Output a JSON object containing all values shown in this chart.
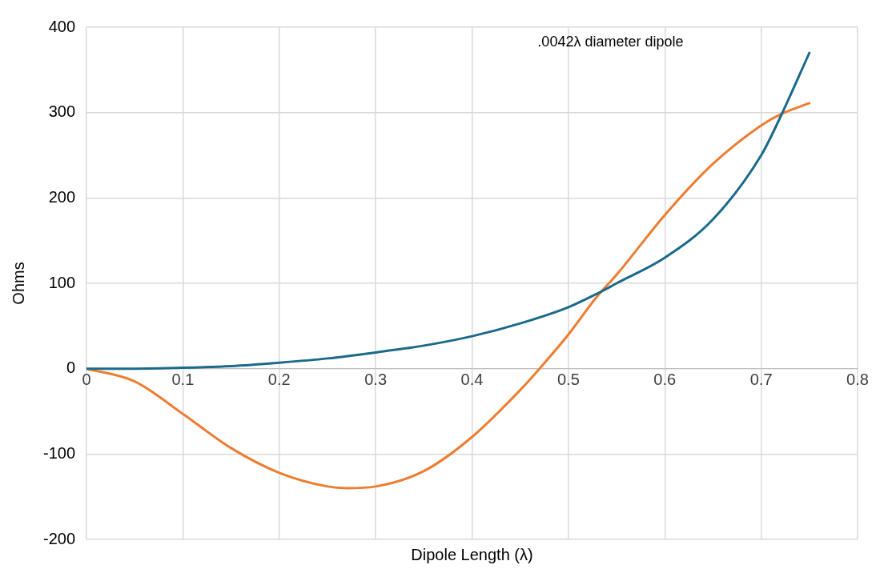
{
  "chart_data": {
    "type": "line",
    "xlabel": "Dipole Length (λ)",
    "ylabel": "Ohms",
    "annotations": [
      ".0042λ diameter dipole"
    ],
    "xlim": [
      0,
      0.8
    ],
    "xticks": [
      0,
      0.1,
      0.2,
      0.3,
      0.4,
      0.5,
      0.6,
      0.7,
      0.8
    ],
    "ylim": [
      -200,
      400
    ],
    "yticks": [
      -200,
      -100,
      0,
      100,
      200,
      300,
      400
    ],
    "grid": true,
    "legend": false,
    "marker": "none",
    "line_style": "solid",
    "series": [
      {
        "color": "#1b6a8c",
        "x": [
          0,
          0.05,
          0.1,
          0.15,
          0.2,
          0.25,
          0.3,
          0.35,
          0.4,
          0.45,
          0.5,
          0.53,
          0.55,
          0.6,
          0.65,
          0.7,
          0.72,
          0.75
        ],
        "values": [
          0,
          0,
          1,
          3,
          7,
          12,
          19,
          27,
          38,
          53,
          72,
          88,
          100,
          130,
          175,
          250,
          295,
          370
        ]
      },
      {
        "color": "#ed7d31",
        "x": [
          0,
          0.05,
          0.1,
          0.15,
          0.2,
          0.25,
          0.27,
          0.3,
          0.35,
          0.4,
          0.45,
          0.47,
          0.5,
          0.53,
          0.55,
          0.6,
          0.65,
          0.7,
          0.72,
          0.75
        ],
        "values": [
          0,
          -15,
          -53,
          -93,
          -122,
          -138,
          -140,
          -138,
          -120,
          -80,
          -25,
          0,
          40,
          85,
          110,
          180,
          240,
          285,
          298,
          311
        ]
      }
    ]
  }
}
